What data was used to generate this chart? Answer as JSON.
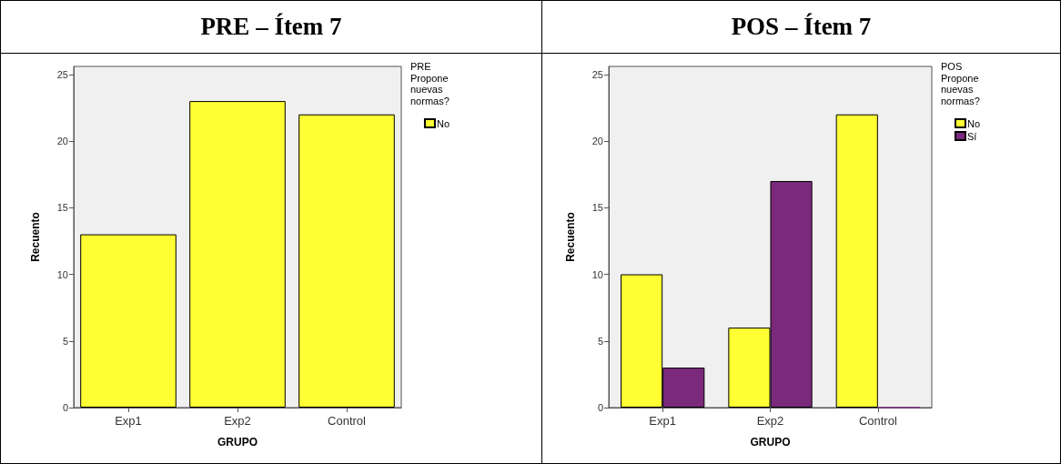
{
  "chart_data": [
    {
      "type": "bar",
      "title": "PRE – Ítem 7",
      "xlabel": "GRUPO",
      "ylabel": "Recuento",
      "legend_title": "PRE\nPropone\nnuevas\nnormas?",
      "categories": [
        "Exp1",
        "Exp2",
        "Control"
      ],
      "series": [
        {
          "name": "No",
          "color": "#ffff33",
          "values": [
            13,
            23,
            22
          ]
        }
      ],
      "ylim": [
        0,
        25.6
      ],
      "yticks": [
        0,
        5,
        10,
        15,
        20,
        25
      ],
      "grid": false,
      "legend": "top right"
    },
    {
      "type": "bar",
      "title": "POS – Ítem 7",
      "xlabel": "GRUPO",
      "ylabel": "Recuento",
      "legend_title": "POS\nPropone\nnuevas\nnormas?",
      "categories": [
        "Exp1",
        "Exp2",
        "Control"
      ],
      "series": [
        {
          "name": "No",
          "color": "#ffff33",
          "values": [
            10,
            6,
            22
          ]
        },
        {
          "name": "Sí",
          "color": "#7b2a7b",
          "values": [
            3,
            17,
            0
          ]
        }
      ],
      "ylim": [
        0,
        25.6
      ],
      "yticks": [
        0,
        5,
        10,
        15,
        20,
        25
      ],
      "grid": false,
      "legend": "top right"
    }
  ]
}
